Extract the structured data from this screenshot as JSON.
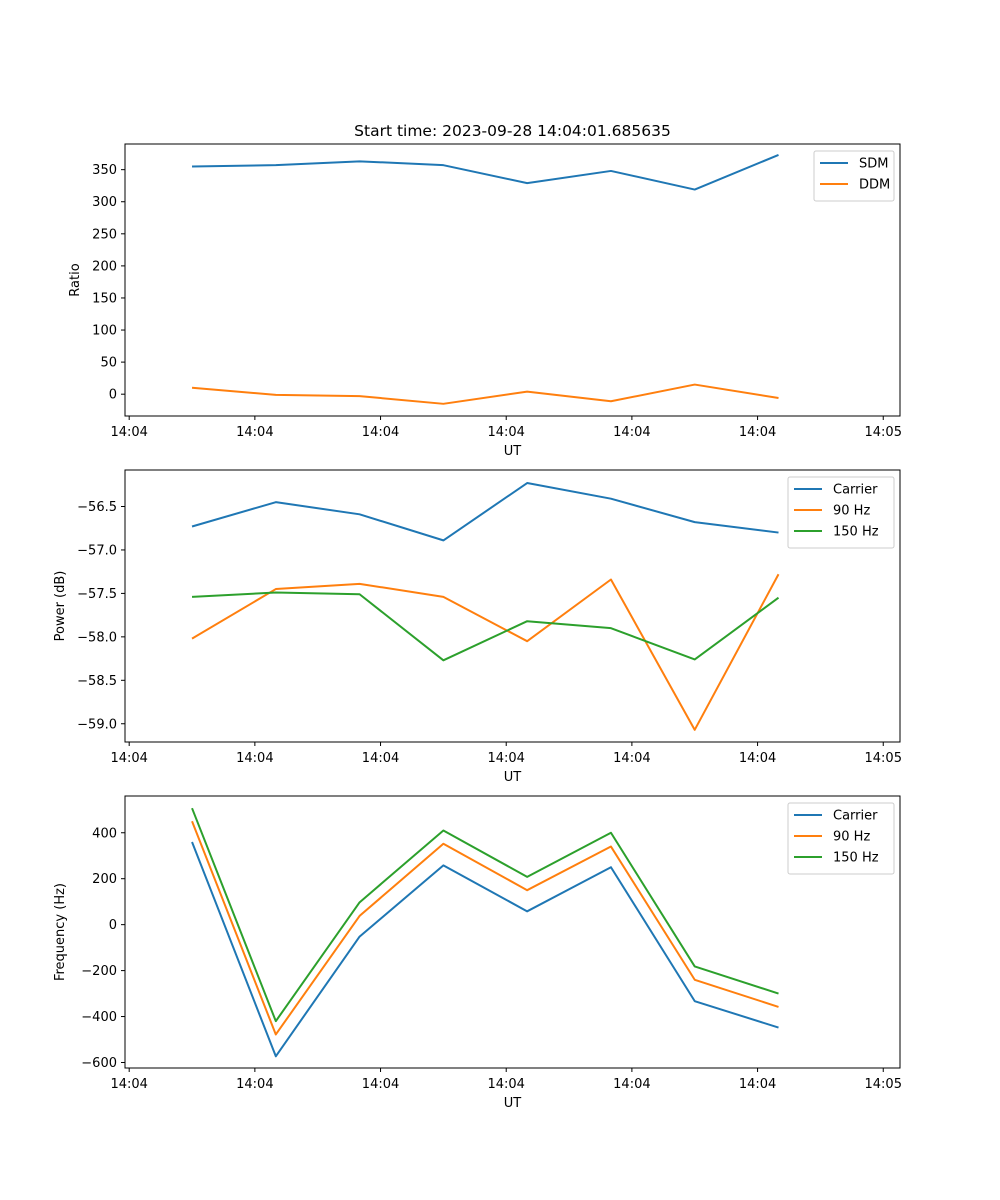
{
  "figure_title": "Start time: 2023-09-28 14:04:01.685635",
  "colors": {
    "blue": "#1f77b4",
    "orange": "#ff7f0e",
    "green": "#2ca02c"
  },
  "chart_data": [
    {
      "type": "line",
      "title": "Start time: 2023-09-28 14:04:01.685635",
      "xlabel": "UT",
      "ylabel": "Ratio",
      "x": [
        1,
        2,
        3,
        4,
        5,
        6,
        7,
        8
      ],
      "xlim": [
        0.2,
        9.45
      ],
      "ylim": [
        -34,
        390
      ],
      "xticks": [
        0.25,
        1.75,
        3.25,
        4.75,
        6.25,
        7.75,
        9.25
      ],
      "xtick_labels": [
        "14:04",
        "14:04",
        "14:04",
        "14:04",
        "14:04",
        "14:04",
        "14:05"
      ],
      "yticks": [
        0,
        50,
        100,
        150,
        200,
        250,
        300,
        350
      ],
      "ytick_labels": [
        "0",
        "50",
        "100",
        "150",
        "200",
        "250",
        "300",
        "350"
      ],
      "legend_position": "top-right",
      "series": [
        {
          "name": "SDM",
          "color": "#1f77b4",
          "values": [
            355,
            357,
            363,
            357,
            329,
            348,
            319,
            373
          ]
        },
        {
          "name": "DDM",
          "color": "#ff7f0e",
          "values": [
            10,
            -1,
            -3,
            -15,
            4,
            -11,
            15,
            -6
          ]
        }
      ]
    },
    {
      "type": "line",
      "title": "",
      "xlabel": "UT",
      "ylabel": "Power (dB)",
      "x": [
        1,
        2,
        3,
        4,
        5,
        6,
        7,
        8
      ],
      "xlim": [
        0.2,
        9.45
      ],
      "ylim": [
        -59.21,
        -56.08
      ],
      "xticks": [
        0.25,
        1.75,
        3.25,
        4.75,
        6.25,
        7.75,
        9.25
      ],
      "xtick_labels": [
        "14:04",
        "14:04",
        "14:04",
        "14:04",
        "14:04",
        "14:04",
        "14:05"
      ],
      "yticks": [
        -59.0,
        -58.5,
        -58.0,
        -57.5,
        -57.0,
        -56.5
      ],
      "ytick_labels": [
        "−59.0",
        "−58.5",
        "−58.0",
        "−57.5",
        "−57.0",
        "−56.5"
      ],
      "legend_position": "top-right",
      "series": [
        {
          "name": "Carrier",
          "color": "#1f77b4",
          "values": [
            -56.73,
            -56.45,
            -56.59,
            -56.89,
            -56.23,
            -56.41,
            -56.68,
            -56.8
          ]
        },
        {
          "name": "90 Hz",
          "color": "#ff7f0e",
          "values": [
            -58.02,
            -57.45,
            -57.39,
            -57.54,
            -58.05,
            -57.34,
            -59.07,
            -57.28
          ]
        },
        {
          "name": "150 Hz",
          "color": "#2ca02c",
          "values": [
            -57.54,
            -57.49,
            -57.51,
            -58.27,
            -57.82,
            -57.9,
            -58.26,
            -57.55
          ]
        }
      ]
    },
    {
      "type": "line",
      "title": "",
      "xlabel": "UT",
      "ylabel": "Frequency (Hz)",
      "x": [
        1,
        2,
        3,
        4,
        5,
        6,
        7,
        8
      ],
      "xlim": [
        0.2,
        9.45
      ],
      "ylim": [
        -624,
        560
      ],
      "xticks": [
        0.25,
        1.75,
        3.25,
        4.75,
        6.25,
        7.75,
        9.25
      ],
      "xtick_labels": [
        "14:04",
        "14:04",
        "14:04",
        "14:04",
        "14:04",
        "14:04",
        "14:05"
      ],
      "yticks": [
        -600,
        -400,
        -200,
        0,
        200,
        400
      ],
      "ytick_labels": [
        "−600",
        "−400",
        "−200",
        "0",
        "200",
        "400"
      ],
      "legend_position": "top-right",
      "series": [
        {
          "name": "Carrier",
          "color": "#1f77b4",
          "values": [
            360,
            -573,
            -52,
            258,
            58,
            250,
            -333,
            -448
          ]
        },
        {
          "name": "90 Hz",
          "color": "#ff7f0e",
          "values": [
            450,
            -478,
            38,
            352,
            150,
            340,
            -240,
            -358
          ]
        },
        {
          "name": "150 Hz",
          "color": "#2ca02c",
          "values": [
            507,
            -420,
            97,
            410,
            208,
            400,
            -182,
            -300
          ]
        }
      ]
    }
  ]
}
